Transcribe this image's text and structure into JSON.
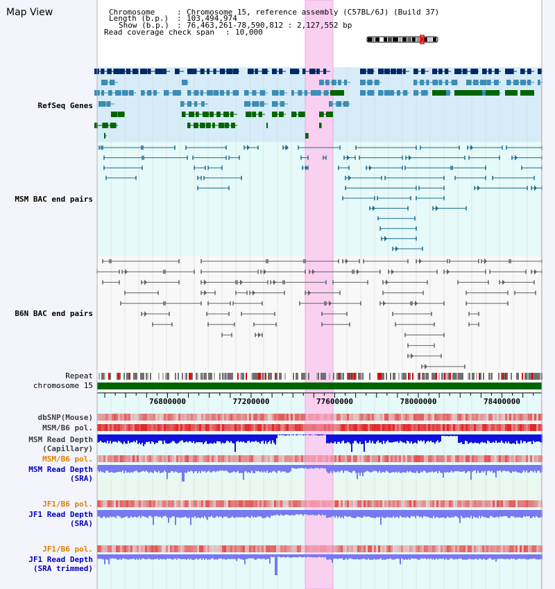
{
  "view_title": "Map View",
  "info": {
    "chromosome_key": "Chromosome",
    "chromosome_value": "Chromosome 15, reference assembly (C57BL/6J) (Build 37)",
    "length_key": "Length (b.p.)",
    "length_value": "103,494,974",
    "show_key": "Show (b.p.)",
    "show_value": "76,463,261-78,590,812 : 2,127,552 bp",
    "coverage_key": "Read coverage check span",
    "coverage_value": "10,000"
  },
  "axis": {
    "start": 76463261,
    "end": 78590812,
    "ticks": [
      "76800000",
      "77200000",
      "77600000",
      "78000000",
      "78400000"
    ],
    "tick_values": [
      76800000,
      77200000,
      77600000,
      78000000,
      78400000
    ]
  },
  "tracks": {
    "refseq": {
      "label": "RefSeq Genes",
      "color": "#0000a0"
    },
    "msm_bac": {
      "label": "MSM BAC end pairs",
      "color": "#005a8c"
    },
    "b6n_bac": {
      "label": "B6N BAC end pairs",
      "color": "#505050"
    },
    "repeat": {
      "label": "Repeat"
    },
    "chromosome": {
      "label": "chromosome 15",
      "color": "#006400"
    },
    "dbsnp": {
      "label": "dbSNP(Mouse)"
    },
    "msm_b6_pol_1": {
      "label": "MSM/B6 pol."
    },
    "msm_depth_cap": {
      "line1": "MSM Read Depth",
      "line2": "(Capillary)"
    },
    "msm_b6_pol_2": {
      "label": "MSM/B6 pol.",
      "color": "#e08000"
    },
    "msm_depth_sra": {
      "line1": "MSM Read Depth",
      "line2": "(SRA)",
      "color": "#0000c0"
    },
    "jf1_b6_pol_1": {
      "label": "JF1/B6 pol.",
      "color": "#e08000"
    },
    "jf1_depth_sra": {
      "line1": "JF1 Read Depth",
      "line2": "(SRA)",
      "color": "#0000c0"
    },
    "jf1_b6_pol_2": {
      "label": "JF1/B6 pol.",
      "color": "#e08000"
    },
    "jf1_depth_trim": {
      "line1": "JF1 Read Depth",
      "line2": "(SRA trimmed)",
      "color": "#0000c0"
    }
  },
  "colors": {
    "highlight": "#f9d0f0",
    "refseq_bg": "#d6ecf8",
    "msm_bac_bg": "#e6fafa",
    "b6n_bg": "#f8f8f8",
    "gene_dark": "#002a66",
    "gene_mid": "#3c8cb4",
    "gene_green": "#006400",
    "snp_red": "#e03030",
    "depth_blue": "#1010e0",
    "depth_light": "#7878f0"
  }
}
